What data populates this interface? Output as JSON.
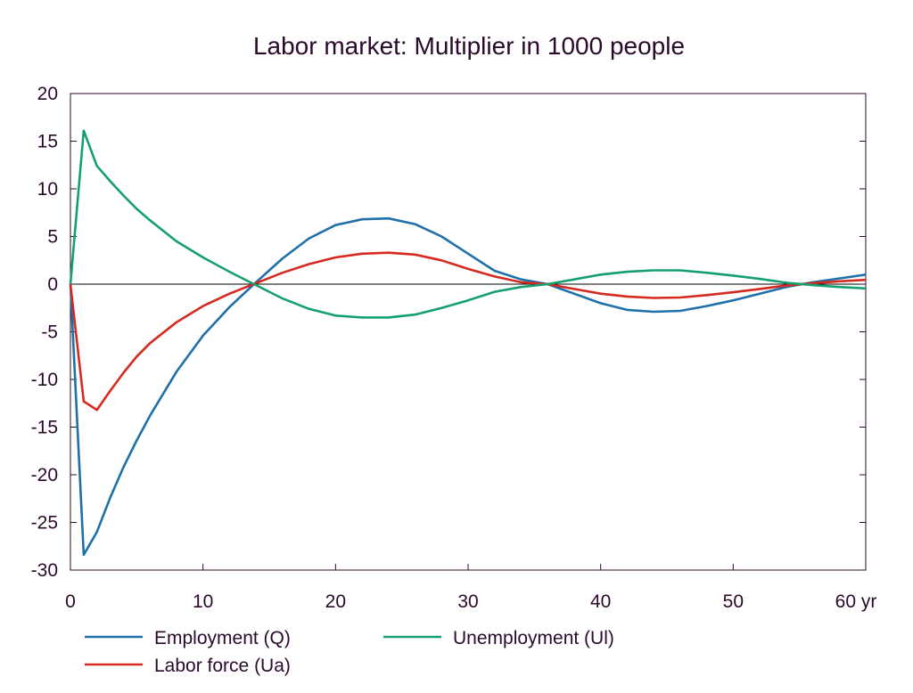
{
  "chart_data": {
    "type": "line",
    "title": "Labor market: Multiplier in 1000 people",
    "xlabel": "",
    "ylabel": "",
    "x_unit_label": "yr",
    "xlim": [
      0,
      60
    ],
    "ylim": [
      -30,
      20
    ],
    "x_ticks": [
      "0",
      "10",
      "20",
      "30",
      "40",
      "50",
      "60 yr"
    ],
    "y_ticks": [
      "20",
      "15",
      "10",
      "5",
      "0",
      "-5",
      "-10",
      "-15",
      "-20",
      "-25",
      "-30"
    ],
    "grid": false,
    "zero_line": true,
    "legend_position": "bottom",
    "series": [
      {
        "name": "Employment (Q)",
        "color": "#1f6fa8",
        "x": [
          0,
          1,
          2,
          3,
          4,
          5,
          6,
          8,
          10,
          12,
          14,
          16,
          18,
          20,
          22,
          24,
          26,
          28,
          30,
          32,
          34,
          36,
          38,
          40,
          42,
          44,
          46,
          48,
          50,
          52,
          54,
          56,
          58,
          60
        ],
        "y": [
          0,
          -28.4,
          -26.0,
          -22.4,
          -19.2,
          -16.4,
          -13.8,
          -9.2,
          -5.4,
          -2.4,
          0.2,
          2.7,
          4.8,
          6.2,
          6.8,
          6.9,
          6.3,
          5.0,
          3.2,
          1.4,
          0.5,
          0,
          -1.0,
          -2.0,
          -2.7,
          -2.9,
          -2.8,
          -2.3,
          -1.7,
          -1.0,
          -0.3,
          0.2,
          0.6,
          1.0
        ]
      },
      {
        "name": "Labor force (Ua)",
        "color": "#d42a20",
        "x": [
          0,
          1,
          2,
          3,
          4,
          5,
          6,
          8,
          10,
          12,
          14,
          16,
          18,
          20,
          22,
          24,
          26,
          28,
          30,
          32,
          34,
          36,
          38,
          40,
          42,
          44,
          46,
          48,
          50,
          52,
          54,
          56,
          58,
          60
        ],
        "y": [
          0,
          -12.3,
          -13.2,
          -11.2,
          -9.3,
          -7.6,
          -6.2,
          -4.0,
          -2.3,
          -1.0,
          0.1,
          1.2,
          2.1,
          2.8,
          3.2,
          3.3,
          3.1,
          2.5,
          1.6,
          0.8,
          0.2,
          0,
          -0.5,
          -1.0,
          -1.3,
          -1.45,
          -1.4,
          -1.15,
          -0.85,
          -0.5,
          -0.15,
          0.1,
          0.3,
          0.45
        ]
      },
      {
        "name": "Unemployment (Ul)",
        "color": "#14a06e",
        "x": [
          0,
          1,
          2,
          3,
          4,
          5,
          6,
          8,
          10,
          12,
          14,
          16,
          18,
          20,
          22,
          24,
          26,
          28,
          30,
          32,
          34,
          36,
          38,
          40,
          42,
          44,
          46,
          48,
          50,
          52,
          54,
          56,
          58,
          60
        ],
        "y": [
          0,
          16.1,
          12.4,
          10.8,
          9.3,
          7.9,
          6.7,
          4.5,
          2.8,
          1.3,
          -0.1,
          -1.5,
          -2.6,
          -3.3,
          -3.5,
          -3.5,
          -3.2,
          -2.5,
          -1.7,
          -0.8,
          -0.3,
          0,
          0.5,
          1.0,
          1.3,
          1.45,
          1.45,
          1.2,
          0.9,
          0.55,
          0.15,
          -0.1,
          -0.3,
          -0.45
        ]
      }
    ]
  }
}
